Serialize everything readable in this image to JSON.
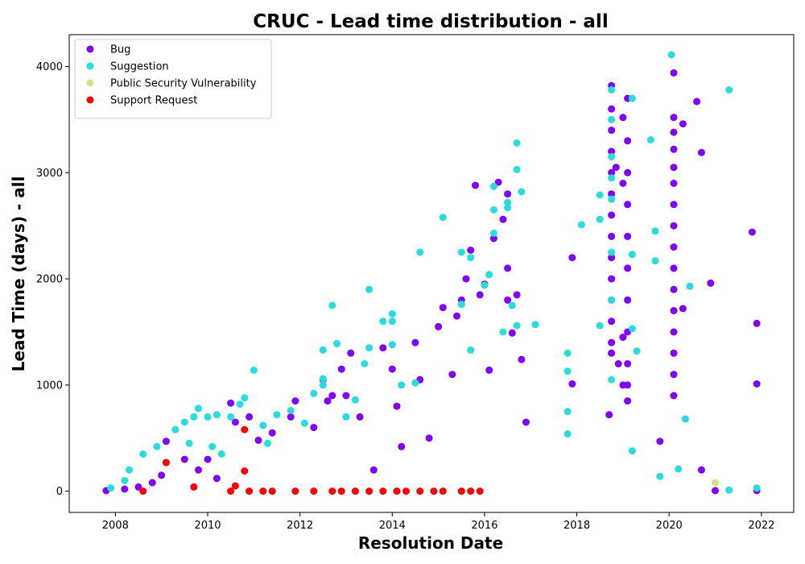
{
  "chart_data": {
    "type": "scatter",
    "title": "CRUC - Lead time distribution - all",
    "xlabel": "Resolution Date",
    "ylabel": "Lead Time (days) - all",
    "xlim": [
      2007.0,
      2022.7
    ],
    "ylim": [
      -200,
      4300
    ],
    "x_ticks": [
      "2008",
      "2010",
      "2012",
      "2014",
      "2016",
      "2018",
      "2020",
      "2022"
    ],
    "y_ticks": [
      "0",
      "1000",
      "2000",
      "3000",
      "4000"
    ],
    "grid": false,
    "legend_position": "upper-left",
    "series": [
      {
        "name": "Bug",
        "color": "#8000ff",
        "points": [
          [
            2007.8,
            5
          ],
          [
            2008.2,
            20
          ],
          [
            2008.5,
            40
          ],
          [
            2008.8,
            80
          ],
          [
            2009.0,
            150
          ],
          [
            2009.1,
            470
          ],
          [
            2009.5,
            300
          ],
          [
            2009.8,
            200
          ],
          [
            2010.0,
            300
          ],
          [
            2010.2,
            120
          ],
          [
            2010.5,
            830
          ],
          [
            2010.6,
            650
          ],
          [
            2010.9,
            700
          ],
          [
            2011.1,
            480
          ],
          [
            2011.4,
            550
          ],
          [
            2011.8,
            700
          ],
          [
            2011.9,
            850
          ],
          [
            2012.3,
            600
          ],
          [
            2012.5,
            1050
          ],
          [
            2012.6,
            850
          ],
          [
            2012.7,
            900
          ],
          [
            2012.9,
            1150
          ],
          [
            2013.0,
            900
          ],
          [
            2013.1,
            1300
          ],
          [
            2013.3,
            700
          ],
          [
            2013.6,
            200
          ],
          [
            2013.8,
            1350
          ],
          [
            2014.0,
            1150
          ],
          [
            2014.1,
            800
          ],
          [
            2014.2,
            420
          ],
          [
            2014.5,
            1400
          ],
          [
            2014.6,
            1050
          ],
          [
            2014.8,
            500
          ],
          [
            2015.0,
            1550
          ],
          [
            2015.1,
            1730
          ],
          [
            2015.3,
            1100
          ],
          [
            2015.4,
            1650
          ],
          [
            2015.5,
            1800
          ],
          [
            2015.6,
            2000
          ],
          [
            2015.7,
            2270
          ],
          [
            2015.8,
            2880
          ],
          [
            2015.9,
            1850
          ],
          [
            2016.0,
            1950
          ],
          [
            2016.1,
            1140
          ],
          [
            2016.2,
            2380
          ],
          [
            2016.3,
            2910
          ],
          [
            2016.4,
            2560
          ],
          [
            2016.5,
            2800
          ],
          [
            2016.5,
            2100
          ],
          [
            2016.5,
            1800
          ],
          [
            2016.6,
            1490
          ],
          [
            2016.7,
            1850
          ],
          [
            2016.8,
            1240
          ],
          [
            2016.9,
            650
          ],
          [
            2017.9,
            2200
          ],
          [
            2017.9,
            1010
          ],
          [
            2018.7,
            720
          ],
          [
            2018.75,
            3820
          ],
          [
            2018.75,
            3600
          ],
          [
            2018.75,
            3400
          ],
          [
            2018.75,
            3200
          ],
          [
            2018.75,
            3000
          ],
          [
            2018.75,
            2800
          ],
          [
            2018.75,
            2600
          ],
          [
            2018.75,
            2400
          ],
          [
            2018.75,
            2200
          ],
          [
            2018.75,
            2000
          ],
          [
            2018.75,
            1800
          ],
          [
            2018.75,
            1600
          ],
          [
            2018.75,
            1400
          ],
          [
            2018.75,
            1300
          ],
          [
            2018.85,
            3050
          ],
          [
            2018.9,
            1200
          ],
          [
            2019.0,
            3520
          ],
          [
            2019.0,
            2900
          ],
          [
            2019.0,
            1450
          ],
          [
            2019.0,
            1000
          ],
          [
            2019.1,
            3700
          ],
          [
            2019.1,
            3300
          ],
          [
            2019.1,
            3000
          ],
          [
            2019.1,
            2700
          ],
          [
            2019.1,
            2400
          ],
          [
            2019.1,
            2100
          ],
          [
            2019.1,
            1800
          ],
          [
            2019.1,
            1500
          ],
          [
            2019.1,
            1200
          ],
          [
            2019.1,
            1000
          ],
          [
            2019.1,
            850
          ],
          [
            2019.8,
            470
          ],
          [
            2020.1,
            3940
          ],
          [
            2020.1,
            3520
          ],
          [
            2020.1,
            3380
          ],
          [
            2020.1,
            3220
          ],
          [
            2020.1,
            3050
          ],
          [
            2020.1,
            2900
          ],
          [
            2020.1,
            2700
          ],
          [
            2020.1,
            2500
          ],
          [
            2020.1,
            2300
          ],
          [
            2020.1,
            2100
          ],
          [
            2020.1,
            1900
          ],
          [
            2020.1,
            1700
          ],
          [
            2020.1,
            1500
          ],
          [
            2020.1,
            1300
          ],
          [
            2020.1,
            1100
          ],
          [
            2020.1,
            900
          ],
          [
            2020.3,
            3460
          ],
          [
            2020.3,
            1720
          ],
          [
            2020.6,
            3670
          ],
          [
            2020.7,
            3190
          ],
          [
            2020.7,
            200
          ],
          [
            2020.9,
            1960
          ],
          [
            2021.0,
            5
          ],
          [
            2021.8,
            2440
          ],
          [
            2021.9,
            1580
          ],
          [
            2021.9,
            1010
          ],
          [
            2021.9,
            5
          ]
        ]
      },
      {
        "name": "Suggestion",
        "color": "#2adddd",
        "points": [
          [
            2007.9,
            30
          ],
          [
            2008.2,
            100
          ],
          [
            2008.3,
            200
          ],
          [
            2008.6,
            350
          ],
          [
            2008.9,
            420
          ],
          [
            2009.1,
            270
          ],
          [
            2009.3,
            580
          ],
          [
            2009.5,
            650
          ],
          [
            2009.6,
            450
          ],
          [
            2009.7,
            700
          ],
          [
            2009.8,
            780
          ],
          [
            2010.0,
            700
          ],
          [
            2010.1,
            420
          ],
          [
            2010.2,
            720
          ],
          [
            2010.3,
            350
          ],
          [
            2010.5,
            700
          ],
          [
            2010.7,
            820
          ],
          [
            2010.8,
            880
          ],
          [
            2011.0,
            1140
          ],
          [
            2011.2,
            620
          ],
          [
            2011.3,
            450
          ],
          [
            2011.5,
            720
          ],
          [
            2011.8,
            760
          ],
          [
            2012.1,
            640
          ],
          [
            2012.3,
            920
          ],
          [
            2012.5,
            1060
          ],
          [
            2012.5,
            1000
          ],
          [
            2012.5,
            1330
          ],
          [
            2012.7,
            1750
          ],
          [
            2012.8,
            1390
          ],
          [
            2013.0,
            700
          ],
          [
            2013.2,
            860
          ],
          [
            2013.4,
            1200
          ],
          [
            2013.5,
            1350
          ],
          [
            2013.5,
            1900
          ],
          [
            2013.8,
            1600
          ],
          [
            2014.0,
            1670
          ],
          [
            2014.0,
            1600
          ],
          [
            2014.0,
            1380
          ],
          [
            2014.2,
            1000
          ],
          [
            2014.5,
            1020
          ],
          [
            2014.6,
            2250
          ],
          [
            2015.1,
            2580
          ],
          [
            2015.5,
            2250
          ],
          [
            2015.7,
            2200
          ],
          [
            2015.5,
            1760
          ],
          [
            2015.7,
            1330
          ],
          [
            2016.0,
            1940
          ],
          [
            2016.1,
            2040
          ],
          [
            2016.2,
            2430
          ],
          [
            2016.2,
            2650
          ],
          [
            2016.2,
            2870
          ],
          [
            2016.5,
            2720
          ],
          [
            2016.5,
            2670
          ],
          [
            2016.7,
            3280
          ],
          [
            2016.7,
            3030
          ],
          [
            2016.8,
            2820
          ],
          [
            2016.6,
            1750
          ],
          [
            2016.4,
            1500
          ],
          [
            2016.7,
            1560
          ],
          [
            2017.1,
            1570
          ],
          [
            2017.8,
            1300
          ],
          [
            2017.8,
            1130
          ],
          [
            2017.8,
            750
          ],
          [
            2017.8,
            540
          ],
          [
            2018.1,
            2510
          ],
          [
            2018.5,
            2790
          ],
          [
            2018.5,
            2560
          ],
          [
            2018.5,
            1560
          ],
          [
            2018.75,
            3780
          ],
          [
            2018.75,
            3500
          ],
          [
            2018.75,
            3150
          ],
          [
            2018.75,
            2950
          ],
          [
            2018.75,
            2750
          ],
          [
            2018.75,
            2250
          ],
          [
            2018.75,
            1800
          ],
          [
            2018.75,
            1050
          ],
          [
            2019.2,
            3700
          ],
          [
            2019.2,
            2230
          ],
          [
            2019.2,
            1530
          ],
          [
            2019.3,
            1320
          ],
          [
            2019.2,
            380
          ],
          [
            2019.6,
            3310
          ],
          [
            2019.7,
            2450
          ],
          [
            2019.7,
            2170
          ],
          [
            2019.8,
            140
          ],
          [
            2020.05,
            4110
          ],
          [
            2020.2,
            210
          ],
          [
            2020.35,
            680
          ],
          [
            2020.45,
            1930
          ],
          [
            2021.3,
            3780
          ],
          [
            2021.3,
            10
          ],
          [
            2021.9,
            30
          ]
        ]
      },
      {
        "name": "Public Security Vulnerability",
        "color": "#d4e17f",
        "points": [
          [
            2021.0,
            80
          ]
        ]
      },
      {
        "name": "Support Request",
        "color": "#ff0000",
        "points": [
          [
            2008.6,
            0
          ],
          [
            2009.1,
            270
          ],
          [
            2009.7,
            40
          ],
          [
            2010.5,
            0
          ],
          [
            2010.6,
            50
          ],
          [
            2010.8,
            580
          ],
          [
            2010.8,
            190
          ],
          [
            2010.9,
            0
          ],
          [
            2011.2,
            0
          ],
          [
            2011.4,
            0
          ],
          [
            2011.9,
            0
          ],
          [
            2012.3,
            0
          ],
          [
            2012.7,
            0
          ],
          [
            2012.9,
            0
          ],
          [
            2013.2,
            0
          ],
          [
            2013.5,
            0
          ],
          [
            2013.8,
            0
          ],
          [
            2014.1,
            0
          ],
          [
            2014.3,
            0
          ],
          [
            2014.6,
            0
          ],
          [
            2014.9,
            0
          ],
          [
            2015.1,
            0
          ],
          [
            2015.5,
            0
          ],
          [
            2015.7,
            0
          ],
          [
            2015.9,
            0
          ]
        ]
      }
    ]
  }
}
